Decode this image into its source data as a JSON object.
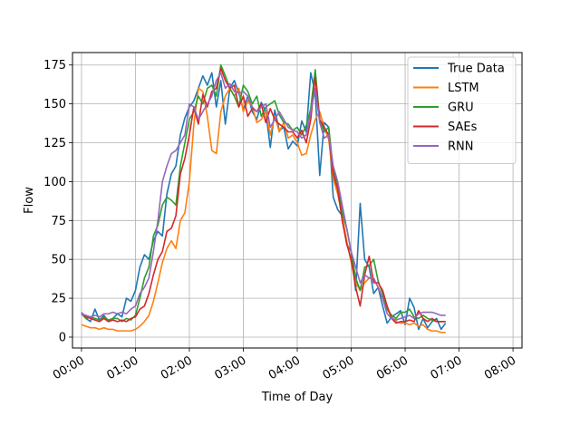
{
  "chart_data": {
    "type": "line",
    "title": "",
    "xlabel": "Time of Day",
    "ylabel": "Flow",
    "x_start": "00:00",
    "x_step_minutes": 5,
    "xlim": [
      -10,
      490
    ],
    "ylim": [
      -7,
      183
    ],
    "xticks": [
      {
        "label": "00:00",
        "minutes": 0
      },
      {
        "label": "01:00",
        "minutes": 60
      },
      {
        "label": "02:00",
        "minutes": 120
      },
      {
        "label": "03:00",
        "minutes": 180
      },
      {
        "label": "04:00",
        "minutes": 240
      },
      {
        "label": "05:00",
        "minutes": 300
      },
      {
        "label": "06:00",
        "minutes": 360
      },
      {
        "label": "07:00",
        "minutes": 420
      },
      {
        "label": "08:00",
        "minutes": 480
      }
    ],
    "yticks": [
      0,
      25,
      50,
      75,
      100,
      125,
      150,
      175
    ],
    "grid": true,
    "legend_position": "top-right",
    "series": [
      {
        "name": "True Data",
        "color": "#1f77b4",
        "values": [
          16,
          12,
          10,
          18,
          11,
          14,
          10,
          12,
          15,
          13,
          25,
          23,
          30,
          45,
          53,
          50,
          62,
          68,
          65,
          92,
          105,
          110,
          130,
          141,
          148,
          152,
          160,
          168,
          162,
          170,
          148,
          165,
          137,
          160,
          165,
          157,
          146,
          155,
          145,
          140,
          151,
          145,
          122,
          146,
          133,
          135,
          121,
          126,
          123,
          139,
          132,
          170,
          157,
          104,
          138,
          135,
          90,
          82,
          78,
          60,
          55,
          30,
          86,
          50,
          45,
          28,
          32,
          20,
          9,
          13,
          15,
          17,
          8,
          25,
          19,
          5,
          12,
          6,
          10,
          12,
          5,
          9
        ]
      },
      {
        "name": "LSTM",
        "color": "#ff7f0e",
        "values": [
          8,
          7,
          6,
          6,
          5,
          6,
          5,
          5,
          4,
          4,
          4,
          4,
          5,
          7,
          10,
          14,
          23,
          35,
          48,
          57,
          62,
          57,
          75,
          80,
          100,
          137,
          160,
          158,
          142,
          120,
          118,
          145,
          155,
          160,
          155,
          160,
          145,
          152,
          148,
          138,
          140,
          145,
          130,
          142,
          132,
          138,
          128,
          130,
          125,
          117,
          118,
          130,
          140,
          145,
          135,
          127,
          102,
          92,
          78,
          62,
          48,
          35,
          30,
          35,
          38,
          37,
          32,
          25,
          18,
          13,
          10,
          9,
          9,
          8,
          9,
          7,
          8,
          5,
          4,
          4,
          3,
          3
        ]
      },
      {
        "name": "GRU",
        "color": "#2ca02c",
        "values": [
          15,
          12,
          13,
          12,
          11,
          13,
          11,
          12,
          12,
          10,
          12,
          11,
          14,
          25,
          38,
          45,
          65,
          72,
          85,
          90,
          88,
          85,
          110,
          125,
          140,
          145,
          155,
          150,
          160,
          162,
          155,
          175,
          168,
          160,
          155,
          148,
          162,
          158,
          150,
          155,
          142,
          148,
          150,
          152,
          143,
          138,
          137,
          133,
          135,
          130,
          136,
          147,
          172,
          140,
          132,
          135,
          108,
          98,
          80,
          70,
          55,
          38,
          30,
          45,
          46,
          50,
          36,
          28,
          18,
          14,
          12,
          16,
          16,
          18,
          13,
          12,
          14,
          12,
          11,
          10,
          10,
          10
        ]
      },
      {
        "name": "SAEs",
        "color": "#d62728",
        "values": [
          15,
          13,
          12,
          11,
          10,
          12,
          10,
          11,
          10,
          11,
          10,
          12,
          13,
          18,
          20,
          28,
          40,
          50,
          55,
          68,
          70,
          78,
          105,
          115,
          130,
          148,
          137,
          156,
          148,
          158,
          160,
          173,
          165,
          160,
          162,
          148,
          155,
          142,
          147,
          145,
          150,
          138,
          147,
          140,
          137,
          135,
          132,
          132,
          128,
          133,
          125,
          140,
          167,
          140,
          135,
          130,
          105,
          95,
          75,
          60,
          50,
          32,
          20,
          40,
          52,
          35,
          35,
          30,
          20,
          12,
          9,
          10,
          10,
          11,
          10,
          17,
          12,
          10,
          12,
          10,
          10,
          10
        ]
      },
      {
        "name": "RNN",
        "color": "#9467bd",
        "values": [
          15,
          14,
          13,
          14,
          13,
          15,
          15,
          16,
          15,
          16,
          15,
          18,
          20,
          28,
          32,
          38,
          55,
          75,
          100,
          110,
          118,
          120,
          125,
          130,
          150,
          148,
          140,
          145,
          150,
          155,
          165,
          170,
          160,
          163,
          158,
          157,
          158,
          155,
          148,
          145,
          148,
          150,
          135,
          140,
          145,
          140,
          135,
          133,
          132,
          128,
          130,
          145,
          160,
          138,
          128,
          130,
          110,
          100,
          85,
          70,
          55,
          45,
          35,
          40,
          38,
          38,
          32,
          25,
          15,
          12,
          11,
          12,
          13,
          14,
          12,
          15,
          16,
          16,
          16,
          15,
          14,
          14
        ]
      }
    ]
  }
}
